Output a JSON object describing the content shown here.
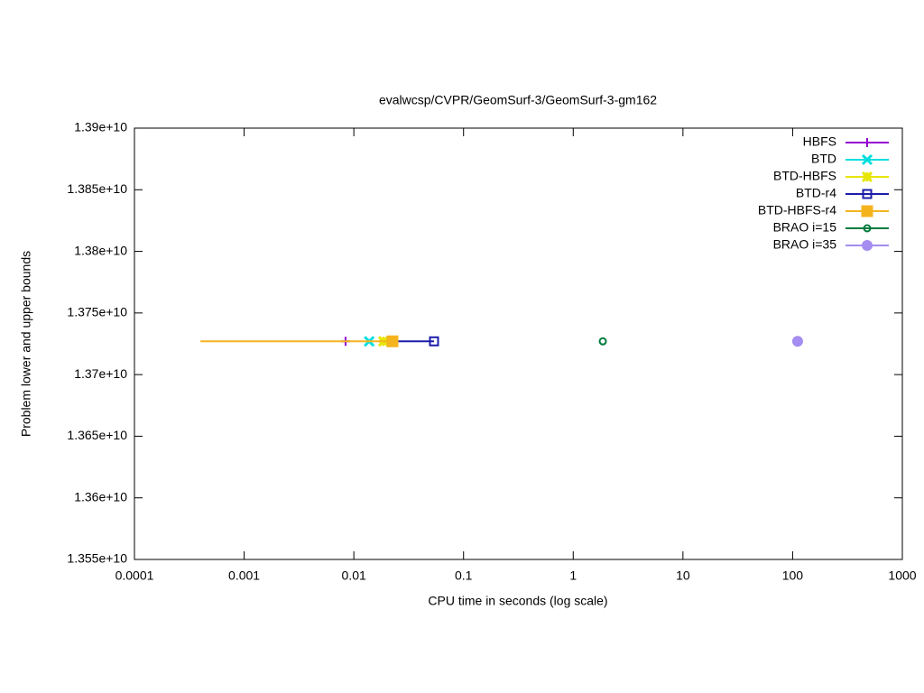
{
  "chart_data": {
    "type": "line",
    "title": "evalwcsp/CVPR/GeomSurf-3/GeomSurf-3-gm162",
    "x_label": "CPU time in seconds (log scale)",
    "y_label": "Problem lower and upper bounds",
    "x_log_scale": true,
    "xlim": [
      0.0001,
      1000
    ],
    "xticks": [
      0.0001,
      0.001,
      0.01,
      0.1,
      1,
      10,
      100,
      1000
    ],
    "ylim": [
      13550000000,
      13900000000
    ],
    "yticks": [
      {
        "value": 13550000000,
        "label": "1.355e+10"
      },
      {
        "value": 13600000000,
        "label": "1.36e+10"
      },
      {
        "value": 13650000000,
        "label": "1.365e+10"
      },
      {
        "value": 13700000000,
        "label": "1.37e+10"
      },
      {
        "value": 13750000000,
        "label": "1.375e+10"
      },
      {
        "value": 13800000000,
        "label": "1.38e+10"
      },
      {
        "value": 13850000000,
        "label": "1.385e+10"
      },
      {
        "value": 13900000000,
        "label": "1.39e+10"
      }
    ],
    "legend_position": "top-right",
    "series": [
      {
        "name": "HBFS",
        "color": "#9400d3",
        "marker": "plus",
        "x": [
          0.0084
        ],
        "values": [
          13727000000
        ]
      },
      {
        "name": "BTD",
        "color": "#00dede",
        "marker": "cross",
        "x": [
          0.0138
        ],
        "values": [
          13727000000
        ]
      },
      {
        "name": "BTD-HBFS",
        "color": "#e6e600",
        "marker": "star",
        "x": [
          0.0186
        ],
        "values": [
          13727000000
        ]
      },
      {
        "name": "BTD-r4",
        "color": "#1c1caa",
        "marker": "open-square",
        "x": [
          0.022,
          0.0538
        ],
        "values": [
          13727000000,
          13727000000
        ]
      },
      {
        "name": "BTD-HBFS-r4",
        "color": "#f5b41e",
        "marker": "filled-square",
        "x": [
          0.0004,
          0.0225
        ],
        "values": [
          13727000000,
          13727000000
        ]
      },
      {
        "name": "BRAO i=15",
        "color": "#007a3d",
        "marker": "open-circle",
        "x": [
          1.86
        ],
        "values": [
          13727000000
        ]
      },
      {
        "name": "BRAO i=35",
        "color": "#a48cf0",
        "marker": "filled-circle",
        "x": [
          111
        ],
        "values": [
          13727000000
        ]
      }
    ]
  }
}
